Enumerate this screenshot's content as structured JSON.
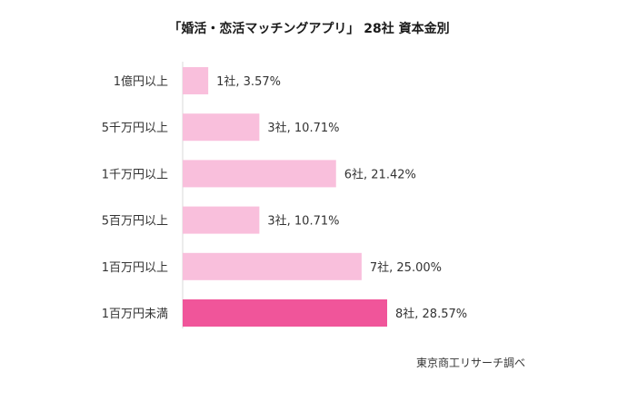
{
  "chart_data": {
    "type": "bar",
    "orientation": "horizontal",
    "title": "「婚活・恋活マッチングアプリ」 28社 資本金別",
    "categories": [
      "1億円以上",
      "5千万円以上",
      "1千万円以上",
      "5百万円以上",
      "1百万円以上",
      "1百万円未満"
    ],
    "values": [
      1,
      3,
      6,
      3,
      7,
      8
    ],
    "percentages": [
      3.57,
      10.71,
      21.42,
      10.71,
      25.0,
      28.57
    ],
    "data_labels": [
      "1社, 3.57%",
      "3社, 10.71%",
      "6社, 21.42%",
      "3社, 10.71%",
      "7社, 25.00%",
      "8社, 28.57%"
    ],
    "xlim": [
      0,
      8
    ],
    "grid": false,
    "legend": "none",
    "colors": {
      "bar": "#f9bfdc",
      "highlight_bar": "#f0559a",
      "axis": "#d9d9d9"
    },
    "highlight_index": 5,
    "source": "東京商工リサーチ調べ"
  }
}
